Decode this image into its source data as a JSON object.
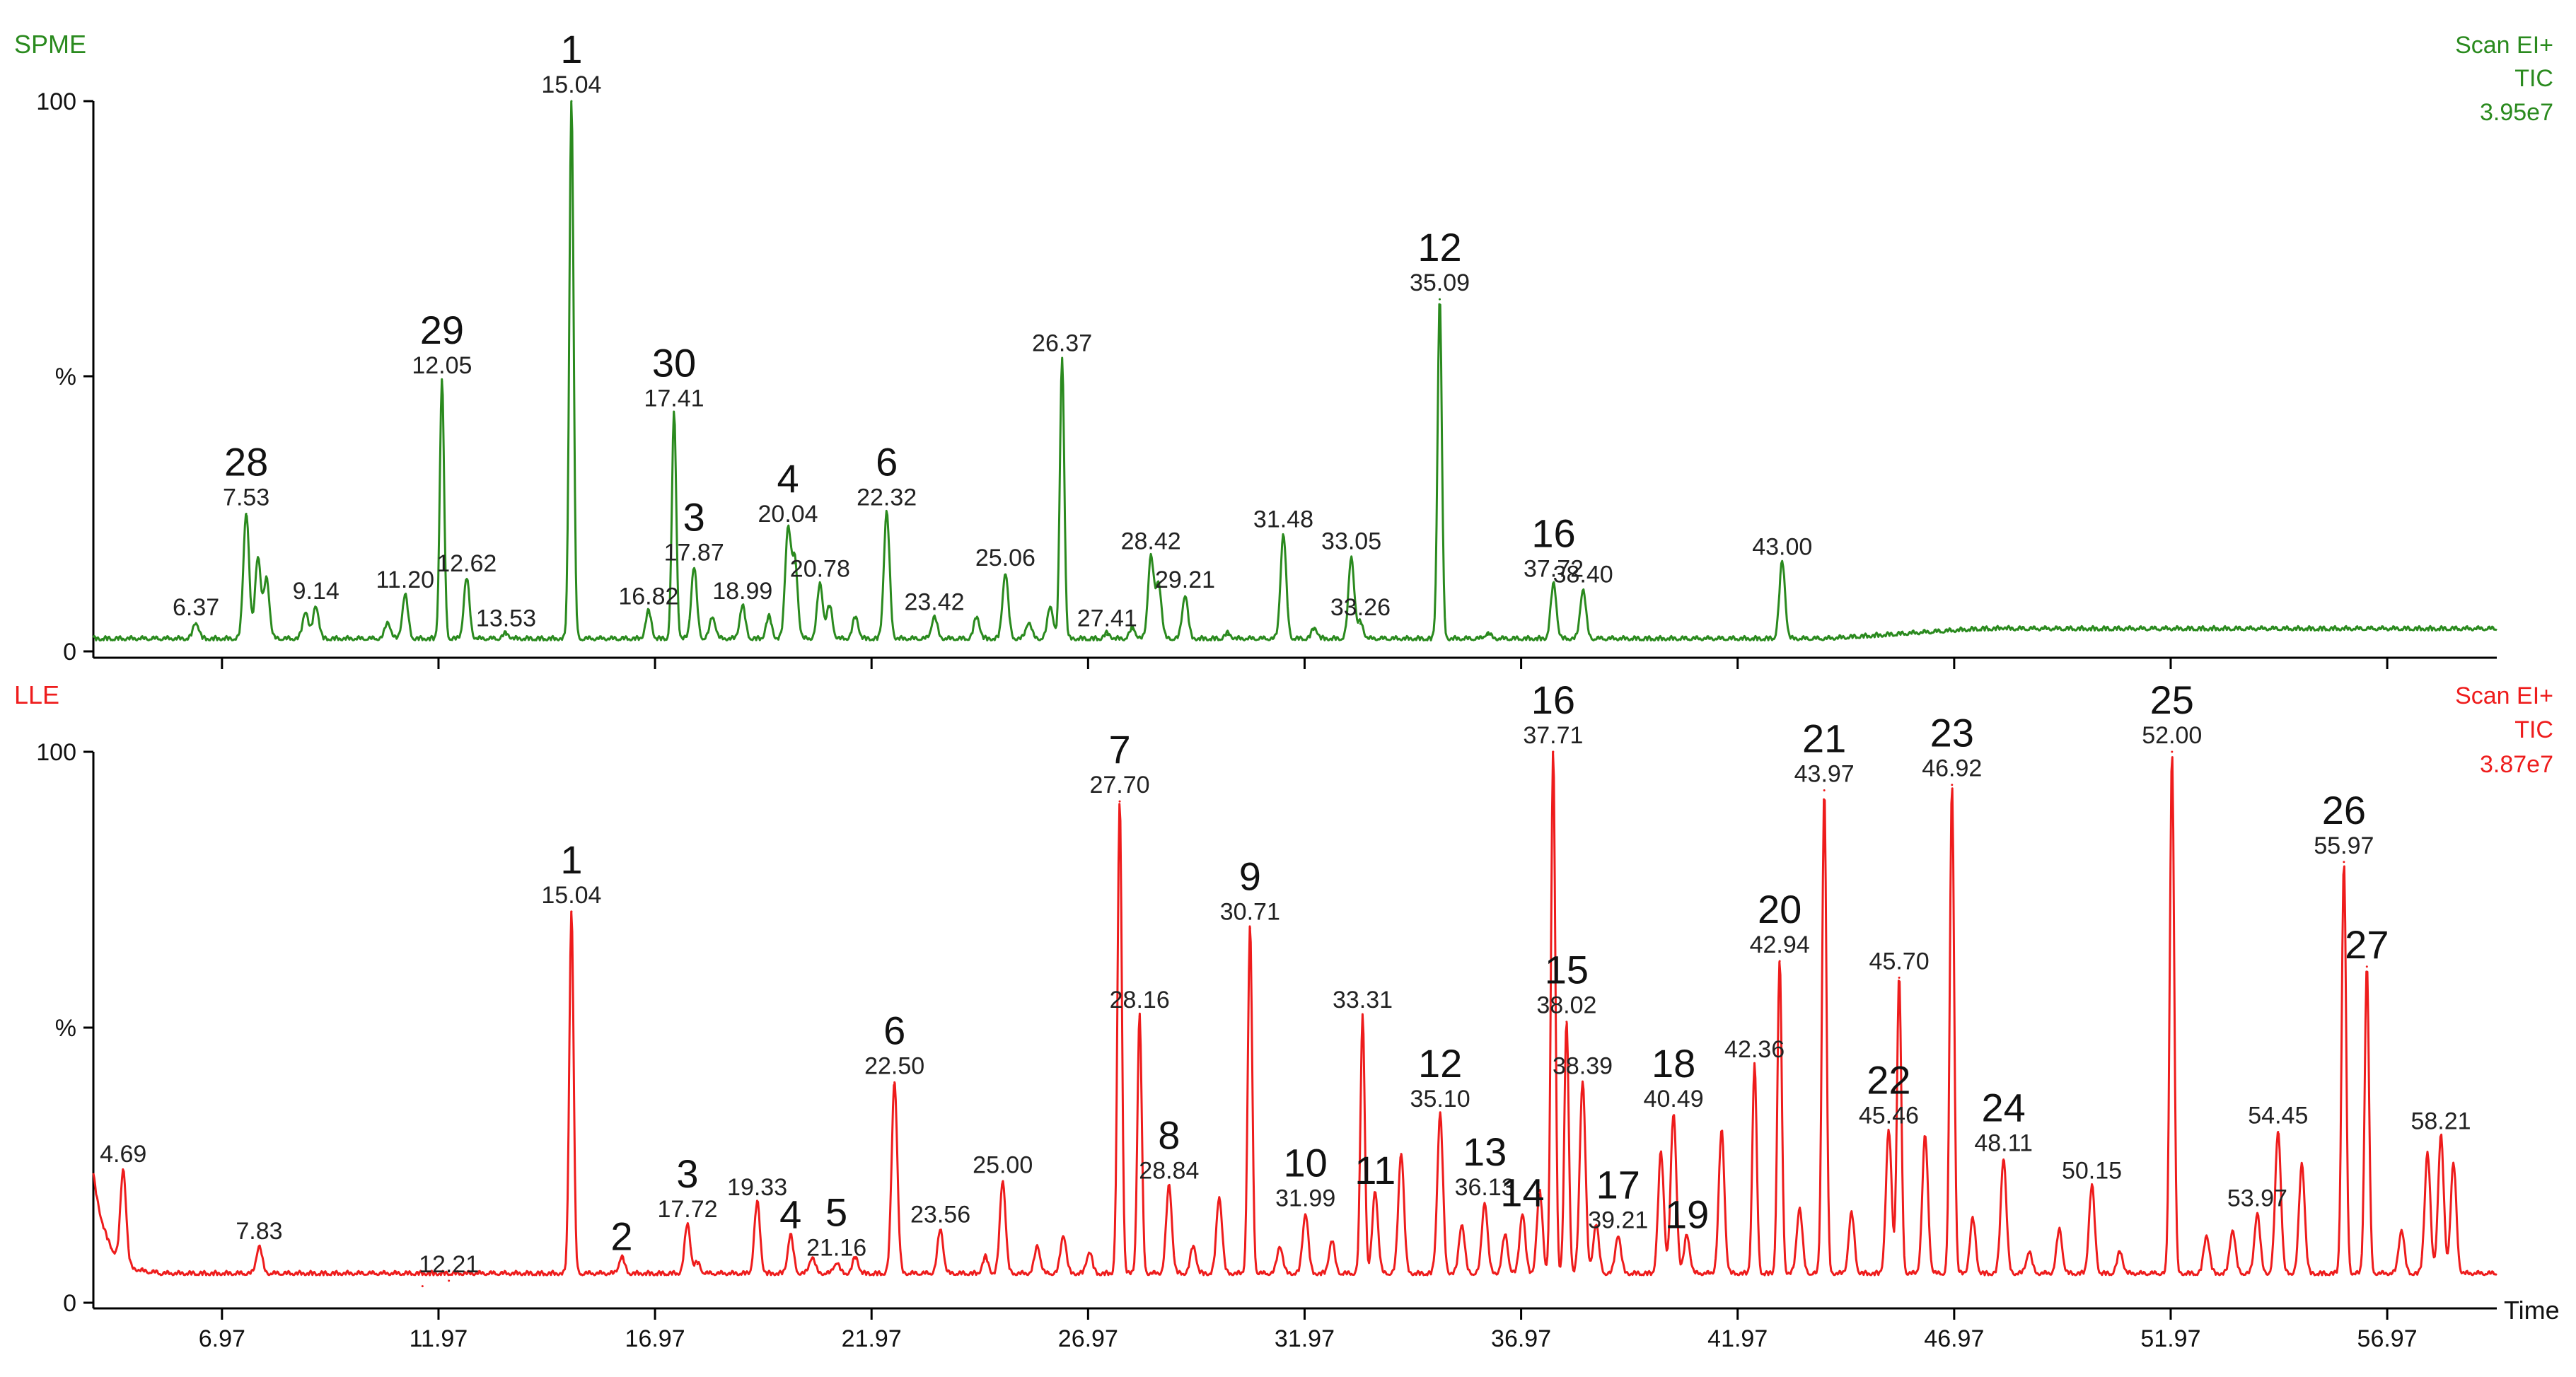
{
  "chart_data": {
    "type": "line",
    "xlabel": "Time",
    "xlim": [
      4.0,
      59.5
    ],
    "xticks": [
      "6.97",
      "11.97",
      "16.97",
      "21.97",
      "26.97",
      "31.97",
      "36.97",
      "41.97",
      "46.97",
      "51.97",
      "56.97"
    ],
    "yticks": [
      "0",
      "%",
      "100"
    ],
    "ylim": [
      0,
      100
    ],
    "panels": [
      {
        "name": "SPME",
        "color": "#2a8a1e",
        "scan": "Scan EI+",
        "signal": "TIC",
        "max_intensity": "3.95e7",
        "baseline": 2,
        "peaks": [
          {
            "rt": 6.37,
            "h": 5,
            "label": "6.37"
          },
          {
            "rt": 7.53,
            "h": 25,
            "label": "7.53",
            "tag": "28"
          },
          {
            "rt": 7.8,
            "h": 17
          },
          {
            "rt": 8.0,
            "h": 13
          },
          {
            "rt": 8.9,
            "h": 7
          },
          {
            "rt": 9.14,
            "h": 8,
            "label": "9.14"
          },
          {
            "rt": 10.8,
            "h": 5
          },
          {
            "rt": 11.2,
            "h": 10,
            "label": "11.20"
          },
          {
            "rt": 12.05,
            "h": 49,
            "label": "12.05",
            "tag": "29"
          },
          {
            "rt": 12.62,
            "h": 13,
            "label": "12.62"
          },
          {
            "rt": 13.53,
            "h": 3,
            "label": "13.53"
          },
          {
            "rt": 15.04,
            "h": 100,
            "label": "15.04",
            "tag": "1"
          },
          {
            "rt": 16.82,
            "h": 7,
            "label": "16.82"
          },
          {
            "rt": 17.41,
            "h": 43,
            "label": "17.41",
            "tag": "30"
          },
          {
            "rt": 17.87,
            "h": 15,
            "label": "17.87",
            "tag": "3"
          },
          {
            "rt": 18.3,
            "h": 6
          },
          {
            "rt": 18.99,
            "h": 8,
            "label": "18.99"
          },
          {
            "rt": 19.6,
            "h": 6
          },
          {
            "rt": 20.04,
            "h": 22,
            "label": "20.04",
            "tag": "4"
          },
          {
            "rt": 20.2,
            "h": 16
          },
          {
            "rt": 20.78,
            "h": 12,
            "label": "20.78"
          },
          {
            "rt": 21.0,
            "h": 8
          },
          {
            "rt": 21.6,
            "h": 6
          },
          {
            "rt": 22.32,
            "h": 25,
            "label": "22.32",
            "tag": "6"
          },
          {
            "rt": 23.42,
            "h": 6,
            "label": "23.42"
          },
          {
            "rt": 24.4,
            "h": 6
          },
          {
            "rt": 25.06,
            "h": 14,
            "label": "25.06"
          },
          {
            "rt": 25.6,
            "h": 5
          },
          {
            "rt": 26.1,
            "h": 8
          },
          {
            "rt": 26.37,
            "h": 53,
            "label": "26.37"
          },
          {
            "rt": 27.41,
            "h": 3,
            "label": "27.41"
          },
          {
            "rt": 28.0,
            "h": 4
          },
          {
            "rt": 28.42,
            "h": 17,
            "label": "28.42"
          },
          {
            "rt": 28.6,
            "h": 12
          },
          {
            "rt": 29.21,
            "h": 10,
            "label": "29.21"
          },
          {
            "rt": 30.2,
            "h": 3
          },
          {
            "rt": 31.48,
            "h": 21,
            "label": "31.48"
          },
          {
            "rt": 32.2,
            "h": 4
          },
          {
            "rt": 33.05,
            "h": 17,
            "label": "33.05"
          },
          {
            "rt": 33.26,
            "h": 5,
            "label": "33.26"
          },
          {
            "rt": 35.09,
            "h": 64,
            "label": "35.09",
            "tag": "12"
          },
          {
            "rt": 36.2,
            "h": 3
          },
          {
            "rt": 37.72,
            "h": 12,
            "label": "37.72",
            "tag": "16"
          },
          {
            "rt": 38.4,
            "h": 11,
            "label": "38.40"
          },
          {
            "rt": 43.0,
            "h": 16,
            "label": "43.00"
          },
          {
            "rt": 48.1,
            "h": 4
          }
        ]
      },
      {
        "name": "LLE",
        "color": "#ee1c1c",
        "scan": "Scan EI+",
        "signal": "TIC",
        "max_intensity": "3.87e7",
        "baseline": 5,
        "peaks": [
          {
            "rt": 4.69,
            "h": 24,
            "label": "4.69"
          },
          {
            "rt": 7.83,
            "h": 10,
            "label": "7.83"
          },
          {
            "rt": 11.6,
            "h": 3
          },
          {
            "rt": 12.21,
            "h": 4,
            "label": "12.21"
          },
          {
            "rt": 15.04,
            "h": 71,
            "label": "15.04",
            "tag": "1"
          },
          {
            "rt": 16.2,
            "h": 8,
            "tag": "2"
          },
          {
            "rt": 17.72,
            "h": 14,
            "label": "17.72",
            "tag": "3"
          },
          {
            "rt": 17.95,
            "h": 7
          },
          {
            "rt": 19.33,
            "h": 18,
            "label": "19.33"
          },
          {
            "rt": 20.1,
            "h": 12,
            "tag": "4"
          },
          {
            "rt": 20.6,
            "h": 8
          },
          {
            "rt": 21.16,
            "h": 7,
            "label": "21.16",
            "tag": "5"
          },
          {
            "rt": 21.6,
            "h": 8
          },
          {
            "rt": 22.5,
            "h": 40,
            "label": "22.50",
            "tag": "6"
          },
          {
            "rt": 23.56,
            "h": 13,
            "label": "23.56"
          },
          {
            "rt": 24.6,
            "h": 8
          },
          {
            "rt": 25.0,
            "h": 22,
            "label": "25.00"
          },
          {
            "rt": 25.8,
            "h": 10
          },
          {
            "rt": 26.4,
            "h": 12
          },
          {
            "rt": 27.0,
            "h": 9
          },
          {
            "rt": 27.7,
            "h": 91,
            "label": "27.70",
            "tag": "7"
          },
          {
            "rt": 28.16,
            "h": 52,
            "label": "28.16"
          },
          {
            "rt": 28.84,
            "h": 21,
            "label": "28.84",
            "tag": "8"
          },
          {
            "rt": 29.4,
            "h": 10
          },
          {
            "rt": 30.0,
            "h": 19
          },
          {
            "rt": 30.71,
            "h": 68,
            "label": "30.71",
            "tag": "9"
          },
          {
            "rt": 31.4,
            "h": 10
          },
          {
            "rt": 31.99,
            "h": 16,
            "label": "31.99",
            "tag": "10"
          },
          {
            "rt": 32.6,
            "h": 11
          },
          {
            "rt": 33.31,
            "h": 52,
            "label": "33.31"
          },
          {
            "rt": 33.6,
            "h": 20,
            "tag": "11"
          },
          {
            "rt": 34.2,
            "h": 27
          },
          {
            "rt": 35.1,
            "h": 34,
            "label": "35.10",
            "tag": "12"
          },
          {
            "rt": 35.6,
            "h": 14
          },
          {
            "rt": 36.13,
            "h": 18,
            "label": "36.13",
            "tag": "13"
          },
          {
            "rt": 36.6,
            "h": 12
          },
          {
            "rt": 37.0,
            "h": 16,
            "tag": "14"
          },
          {
            "rt": 37.4,
            "h": 20
          },
          {
            "rt": 37.71,
            "h": 100,
            "label": "37.71",
            "tag": "16"
          },
          {
            "rt": 38.02,
            "h": 51,
            "label": "38.02",
            "tag": "15"
          },
          {
            "rt": 38.39,
            "h": 40,
            "label": "38.39"
          },
          {
            "rt": 38.7,
            "h": 14
          },
          {
            "rt": 39.21,
            "h": 12,
            "label": "39.21",
            "tag": "17"
          },
          {
            "rt": 40.2,
            "h": 27
          },
          {
            "rt": 40.49,
            "h": 34,
            "label": "40.49",
            "tag": "18"
          },
          {
            "rt": 40.8,
            "h": 12,
            "tag": "19"
          },
          {
            "rt": 41.6,
            "h": 31
          },
          {
            "rt": 42.36,
            "h": 43,
            "label": "42.36"
          },
          {
            "rt": 42.94,
            "h": 62,
            "label": "42.94",
            "tag": "20"
          },
          {
            "rt": 43.4,
            "h": 17
          },
          {
            "rt": 43.97,
            "h": 93,
            "label": "43.97",
            "tag": "21"
          },
          {
            "rt": 44.6,
            "h": 16
          },
          {
            "rt": 45.46,
            "h": 31,
            "label": "45.46",
            "tag": "22"
          },
          {
            "rt": 45.7,
            "h": 59,
            "label": "45.70"
          },
          {
            "rt": 46.3,
            "h": 30
          },
          {
            "rt": 46.92,
            "h": 94,
            "label": "46.92",
            "tag": "23"
          },
          {
            "rt": 47.4,
            "h": 15
          },
          {
            "rt": 48.11,
            "h": 26,
            "label": "48.11",
            "tag": "24"
          },
          {
            "rt": 48.7,
            "h": 9
          },
          {
            "rt": 49.4,
            "h": 13
          },
          {
            "rt": 50.15,
            "h": 21,
            "label": "50.15"
          },
          {
            "rt": 50.8,
            "h": 9
          },
          {
            "rt": 52.0,
            "h": 100,
            "label": "52.00",
            "tag": "25"
          },
          {
            "rt": 52.8,
            "h": 12
          },
          {
            "rt": 53.4,
            "h": 13
          },
          {
            "rt": 53.97,
            "h": 16,
            "label": "53.97"
          },
          {
            "rt": 54.45,
            "h": 31,
            "label": "54.45"
          },
          {
            "rt": 55.0,
            "h": 25
          },
          {
            "rt": 55.97,
            "h": 80,
            "label": "55.97",
            "tag": "26"
          },
          {
            "rt": 56.5,
            "h": 61,
            "tag": "27"
          },
          {
            "rt": 57.3,
            "h": 13
          },
          {
            "rt": 57.9,
            "h": 27
          },
          {
            "rt": 58.21,
            "h": 30,
            "label": "58.21"
          },
          {
            "rt": 58.5,
            "h": 25
          }
        ]
      }
    ]
  }
}
